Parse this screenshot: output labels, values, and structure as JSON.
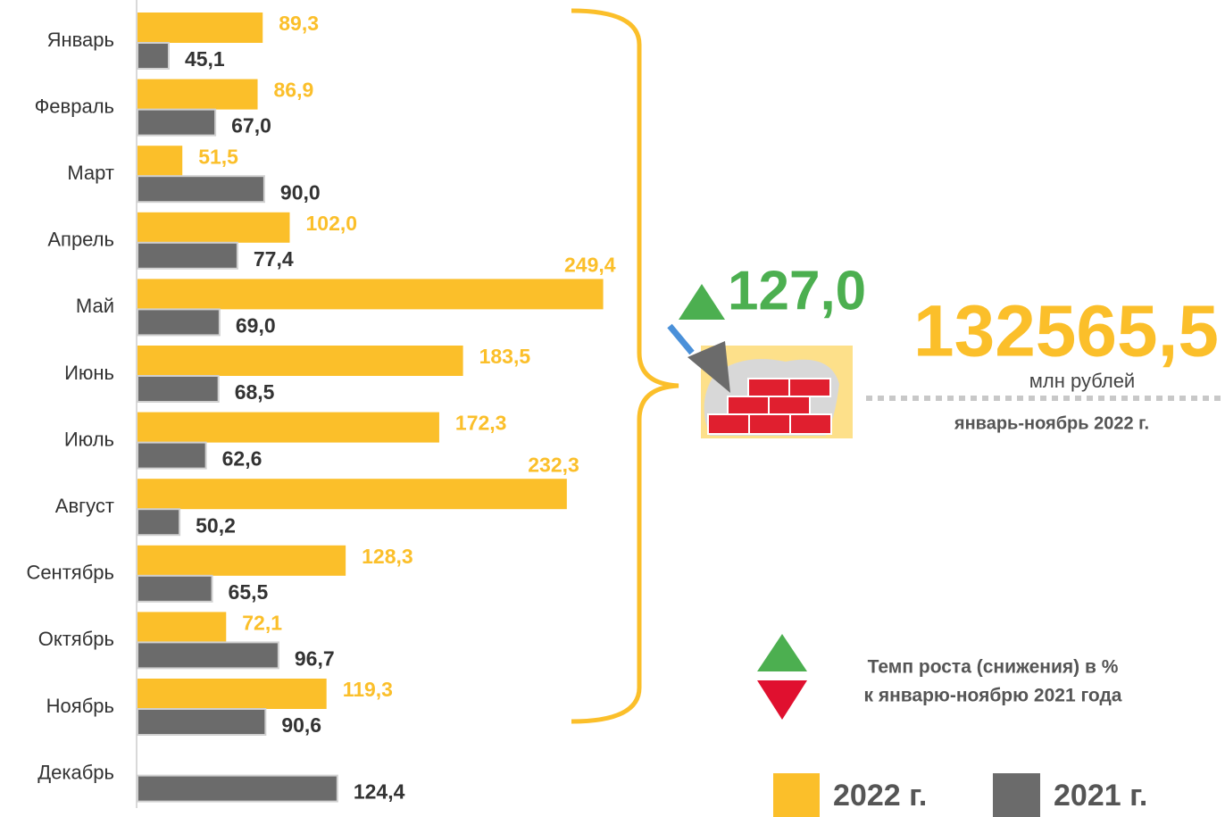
{
  "chart_data": {
    "type": "bar",
    "orientation": "horizontal",
    "categories": [
      "Январь",
      "Февраль",
      "Март",
      "Апрель",
      "Май",
      "Июнь",
      "Июль",
      "Август",
      "Сентябрь",
      "Октябрь",
      "Ноябрь",
      "Декабрь"
    ],
    "series": [
      {
        "name": "2022 г.",
        "color": "#fbbf2a",
        "values": [
          89.3,
          86.9,
          51.5,
          102.0,
          249.4,
          183.5,
          172.3,
          232.3,
          128.3,
          72.1,
          119.3,
          null
        ],
        "value_labels": [
          "89,3",
          "86,9",
          "51,5",
          "102,0",
          "249,4",
          "183,5",
          "172,3",
          "232,3",
          "128,3",
          "72,1",
          "119,3",
          null
        ]
      },
      {
        "name": "2021 г.",
        "color": "#6b6b6b",
        "values": [
          45.1,
          67.0,
          90.0,
          77.4,
          69.0,
          68.5,
          62.6,
          50.2,
          65.5,
          96.7,
          90.6,
          124.4
        ],
        "value_labels": [
          "45,1",
          "67,0",
          "90,0",
          "77,4",
          "69,0",
          "68,5",
          "62,6",
          "50,2",
          "65,5",
          "96,7",
          "90,6",
          "124,4"
        ]
      }
    ],
    "xlim": [
      30,
      250
    ],
    "annotations": {
      "growth": "127,0",
      "total": "132565,5",
      "unit": "млн рублей",
      "period": "январь-ноябрь 2022 г.",
      "rate_note_1": "Темп роста (снижения) в %",
      "rate_note_2": "к январю-ноябрю 2021 года"
    }
  }
}
